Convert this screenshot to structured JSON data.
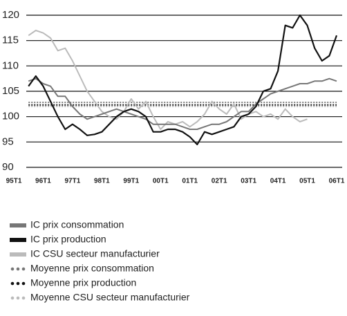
{
  "chart_data": {
    "type": "line",
    "x": [
      1995.5,
      1995.75,
      1996,
      1996.25,
      1996.5,
      1996.75,
      1997,
      1997.25,
      1997.5,
      1997.75,
      1998,
      1998.25,
      1998.5,
      1998.75,
      1999,
      1999.25,
      1999.5,
      1999.75,
      2000,
      2000.25,
      2000.5,
      2000.75,
      2001,
      2001.25,
      2001.5,
      2001.75,
      2002,
      2002.25,
      2002.5,
      2002.75,
      2003,
      2003.25,
      2003.5,
      2003.75,
      2004,
      2004.25,
      2004.5,
      2004.75,
      2005,
      2005.25,
      2005.5,
      2005.75,
      2006
    ],
    "series": [
      {
        "name": "IC prix consommation",
        "color": "#777777",
        "values": [
          107,
          107.5,
          106.5,
          106,
          104,
          104,
          102,
          100.5,
          99.5,
          100,
          100.5,
          101,
          101.5,
          101,
          100.5,
          100,
          99.5,
          98.5,
          98.5,
          98.5,
          98.5,
          98,
          97.5,
          97.5,
          98,
          98.5,
          98.5,
          99,
          100,
          101,
          101,
          102.5,
          103.5,
          104.5,
          105,
          105.5,
          106,
          106.5,
          106.5,
          107,
          107,
          107.5,
          107
        ]
      },
      {
        "name": "IC prix production",
        "color": "#111111",
        "values": [
          106,
          108,
          106,
          103,
          100,
          97.5,
          98.5,
          97.5,
          96.3,
          96.5,
          97,
          98.5,
          100,
          101,
          101.5,
          101,
          100,
          97,
          97,
          97.5,
          97.5,
          97,
          96,
          94.5,
          97,
          96.5,
          97,
          97.5,
          98,
          100,
          100.5,
          102,
          105,
          105.5,
          109,
          118,
          117.5,
          120,
          118,
          113.5,
          111,
          112,
          116
        ]
      },
      {
        "name": "IC CSU secteur manufacturier",
        "color": "#bbbbbb",
        "values": [
          116,
          117,
          116.5,
          115.5,
          113,
          113.5,
          111,
          108,
          105,
          103,
          101,
          100,
          99.5,
          101,
          103.5,
          101.5,
          103,
          100,
          97.5,
          99,
          98.5,
          99,
          98,
          99,
          100.5,
          103,
          101.5,
          100.5,
          102.5,
          99.5,
          100.5,
          101,
          100,
          100.5,
          99.5,
          101.5,
          100,
          99,
          99.5,
          null,
          null,
          null,
          null
        ]
      }
    ],
    "averages": [
      {
        "name": "Moyenne prix consommation",
        "color": "#777777",
        "value": 102.8
      },
      {
        "name": "Moyenne prix production",
        "color": "#111111",
        "value": 102.3
      },
      {
        "name": "Moyenne CSU secteur manufacturier",
        "color": "#bbbbbb",
        "value": 102
      }
    ],
    "xlim": [
      1995,
      2006
    ],
    "xticks": [
      {
        "value": 1995,
        "label": "95T1"
      },
      {
        "value": 1996,
        "label": "96T1"
      },
      {
        "value": 1997,
        "label": "97T1"
      },
      {
        "value": 1998,
        "label": "98T1"
      },
      {
        "value": 1999,
        "label": "99T1"
      },
      {
        "value": 2000,
        "label": "00T1"
      },
      {
        "value": 2001,
        "label": "01T1"
      },
      {
        "value": 2002,
        "label": "02T1"
      },
      {
        "value": 2003,
        "label": "03T1"
      },
      {
        "value": 2004,
        "label": "04T1"
      },
      {
        "value": 2005,
        "label": "05T1"
      },
      {
        "value": 2006,
        "label": "06T1"
      }
    ],
    "ylim": [
      90,
      120
    ],
    "yticks": [
      90,
      95,
      100,
      105,
      110,
      115,
      120
    ],
    "grid": true
  }
}
